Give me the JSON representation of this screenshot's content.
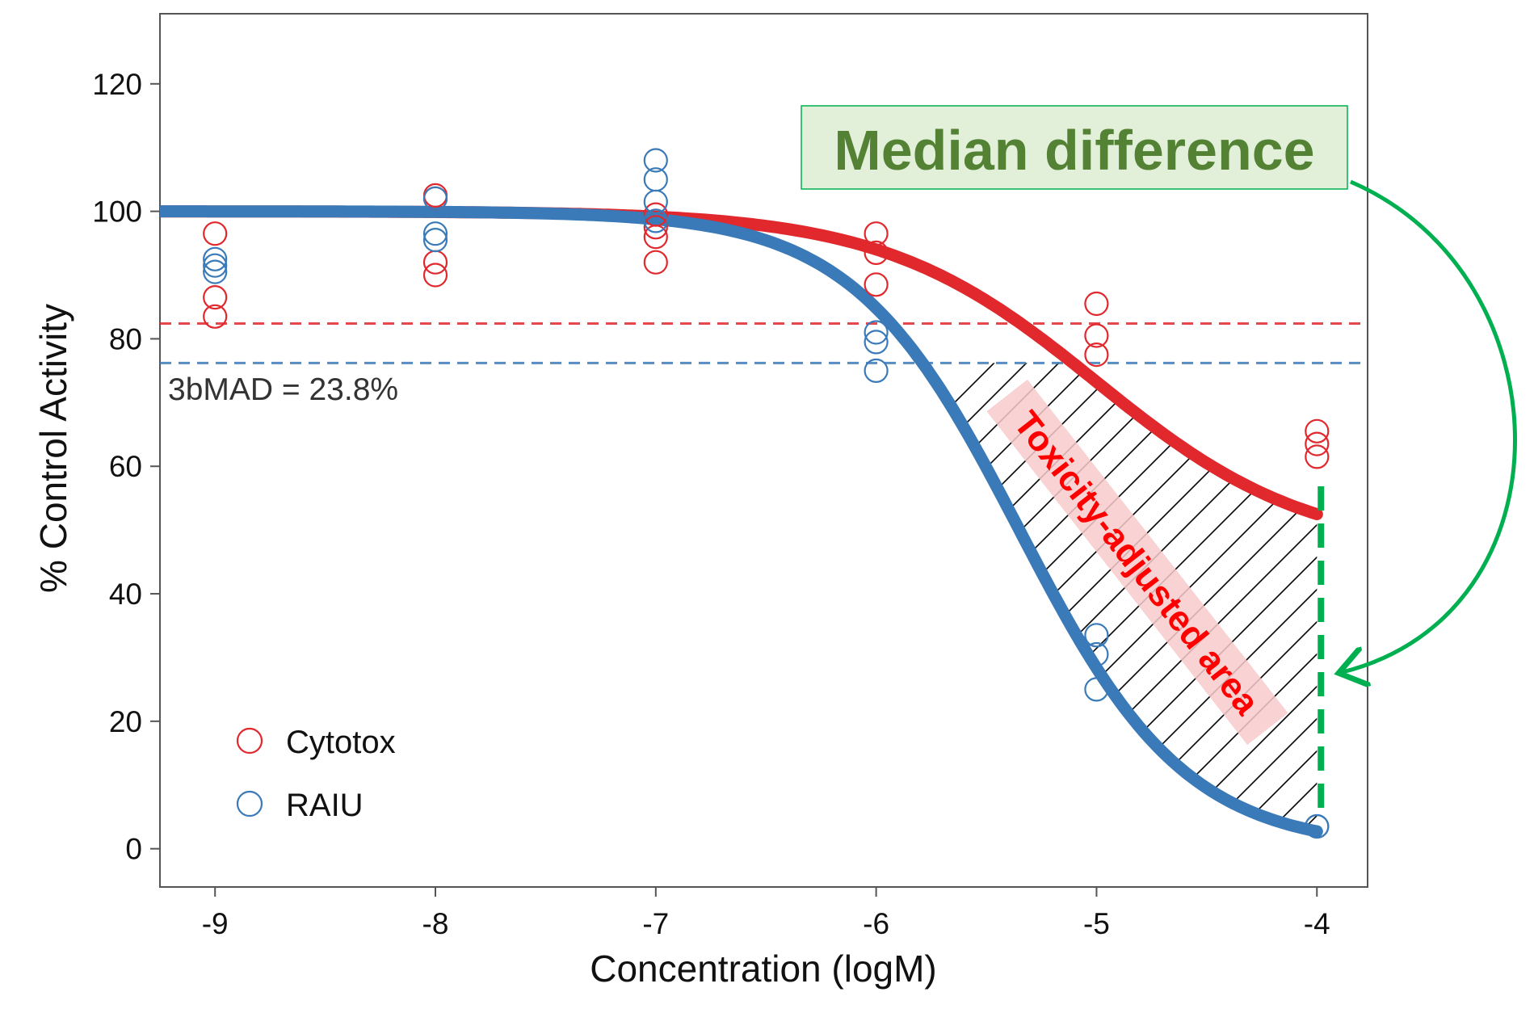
{
  "chart_data": {
    "type": "scatter",
    "title": "",
    "xlabel": "Concentration (logM)",
    "ylabel": "% Control Activity",
    "xlim": [
      -9.25,
      -3.77
    ],
    "ylim": [
      -6,
      131
    ],
    "x_ticks": [
      -9,
      -8,
      -7,
      -6,
      -5,
      -4
    ],
    "y_ticks": [
      0,
      20,
      40,
      60,
      80,
      100,
      120
    ],
    "grid": false,
    "legend_position": "bottom-left",
    "series": [
      {
        "name": "Cytotox",
        "color": "#e0282d",
        "points": [
          [
            -9,
            96.5
          ],
          [
            -9,
            86.5
          ],
          [
            -9,
            83.5
          ],
          [
            -8,
            102.5
          ],
          [
            -8,
            102
          ],
          [
            -8,
            92
          ],
          [
            -8,
            90
          ],
          [
            -7,
            99.5
          ],
          [
            -7,
            97.5
          ],
          [
            -7,
            96
          ],
          [
            -7,
            92
          ],
          [
            -6,
            96.5
          ],
          [
            -6,
            93.5
          ],
          [
            -6,
            88.5
          ],
          [
            -5,
            85.5
          ],
          [
            -5,
            80.5
          ],
          [
            -5,
            77.5
          ],
          [
            -4,
            65.5
          ],
          [
            -4,
            63.5
          ],
          [
            -4,
            61.5
          ]
        ],
        "curve": {
          "top": 100,
          "bottom": 46.5,
          "ac50": -5,
          "hill": 0.9
        },
        "threshold": 82.4
      },
      {
        "name": "RAIU",
        "color": "#3a7ab8",
        "points": [
          [
            -9,
            92.5
          ],
          [
            -9,
            91.5
          ],
          [
            -9,
            90.5
          ],
          [
            -8,
            102
          ],
          [
            -8,
            96.5
          ],
          [
            -8,
            95.5
          ],
          [
            -7,
            108
          ],
          [
            -7,
            105
          ],
          [
            -7,
            101.5
          ],
          [
            -7,
            98.5
          ],
          [
            -6,
            81
          ],
          [
            -6,
            79.5
          ],
          [
            -6,
            75
          ],
          [
            -5,
            33.5
          ],
          [
            -5,
            30.5
          ],
          [
            -5,
            25
          ],
          [
            -4,
            3.5
          ],
          [
            -4,
            3.5
          ]
        ],
        "curve": {
          "top": 100,
          "bottom": 0,
          "ac50": -5.35,
          "hill": 1.15
        },
        "threshold": 76.2
      }
    ],
    "annotations": {
      "bmad_label": "3bMAD = 23.8%",
      "median_difference": "Median difference",
      "toxicity_area": "Toxicity-adjusted area"
    },
    "colors": {
      "callout_bg": "#e2f0d9",
      "callout_border": "#00b050",
      "callout_text": "#548235",
      "arrow": "#00b050",
      "area_text": "#ff0000",
      "area_label_bg": "#f8cbcb",
      "hatch": "#000000"
    }
  }
}
